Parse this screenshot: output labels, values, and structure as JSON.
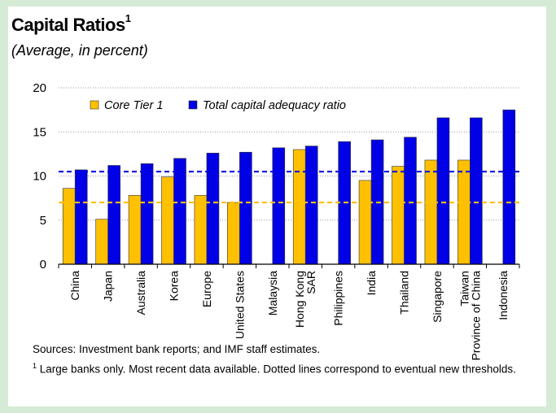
{
  "title": "Capital Ratios",
  "title_footnote_mark": "1",
  "subtitle": "(Average, in percent)",
  "notes": {
    "sources": "Sources: Investment bank reports; and IMF staff estimates.",
    "footnote_mark": "1",
    "footnote": "Large banks only. Most recent data available. Dotted lines correspond to eventual new thresholds."
  },
  "chart_data": {
    "type": "bar",
    "title": "Capital Ratios",
    "subtitle": "(Average, in percent)",
    "xlabel": "",
    "ylabel": "",
    "ylim": [
      0,
      20
    ],
    "yticks": [
      0,
      5,
      10,
      15,
      20
    ],
    "grid": true,
    "legend_position": "top-left",
    "categories": [
      "China",
      "Japan",
      "Australia",
      "Korea",
      "Europe",
      "United States",
      "Malaysia",
      "Hong Kong\nSAR",
      "Philippines",
      "India",
      "Thailand",
      "Singapore",
      "Taiwan\nProvince of China",
      "Indonesia"
    ],
    "series": [
      {
        "name": "Core Tier 1",
        "color": "#ffc000",
        "values": [
          8.6,
          5.1,
          7.8,
          9.9,
          7.8,
          7.0,
          null,
          13.0,
          null,
          9.5,
          11.1,
          11.8,
          11.8,
          null
        ]
      },
      {
        "name": "Total capital adequacy ratio",
        "color": "#0000e6",
        "values": [
          10.7,
          11.2,
          11.4,
          12.0,
          12.6,
          12.7,
          13.2,
          13.4,
          13.9,
          14.1,
          14.4,
          16.6,
          16.6,
          17.5
        ]
      }
    ],
    "reference_lines": [
      {
        "value": 10.5,
        "color": "#0000e6",
        "style": "dashed"
      },
      {
        "value": 7.0,
        "color": "#ffc000",
        "style": "dashed"
      }
    ]
  }
}
